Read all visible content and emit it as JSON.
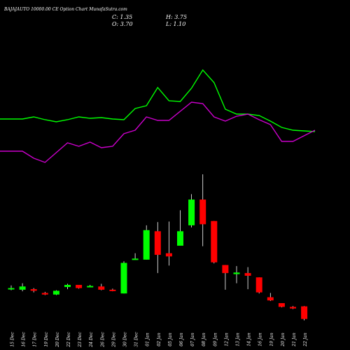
{
  "header": {
    "title": "BAJAJAUTO 10000.00 CE Option  Chart MunafaSutra.com",
    "open_label": "O: 3.70",
    "high_label": "H: 3.75",
    "low_label": "L: 1.10",
    "close_label": "C: 1.35"
  },
  "colors": {
    "background": "#000000",
    "up": "#00ff00",
    "down": "#ff0000",
    "line_1": "#00ff00",
    "line_2": "#cc00cc",
    "text": "#ffffff"
  },
  "chart_data": {
    "type": "candlestick",
    "categories": [
      "15 Dec",
      "16 Dec",
      "17 Dec",
      "19 Dec",
      "20 Dec",
      "22 Dec",
      "23 Dec",
      "24 Dec",
      "26 Dec",
      "29 Dec",
      "30 Dec",
      "31 Dec",
      "01 Jan",
      "02 Jan",
      "05 Jan",
      "06 Jan",
      "07 Jan",
      "08 Jan",
      "09 Jan",
      "12 Jan",
      "13 Jan",
      "14 Jan",
      "16 Jan",
      "19 Jan",
      "20 Jan",
      "21 Jan",
      "22 Jan"
    ],
    "candles": [
      {
        "o": 7.0,
        "h": 7.6,
        "l": 6.7,
        "c": 7.1
      },
      {
        "o": 6.8,
        "h": 8.0,
        "l": 6.5,
        "c": 7.4
      },
      {
        "o": 6.9,
        "h": 7.1,
        "l": 6.3,
        "c": 6.6
      },
      {
        "o": 6.2,
        "h": 6.4,
        "l": 5.8,
        "c": 5.9
      },
      {
        "o": 5.9,
        "h": 6.7,
        "l": 5.8,
        "c": 6.6
      },
      {
        "o": 7.3,
        "h": 7.9,
        "l": 6.9,
        "c": 7.7
      },
      {
        "o": 7.7,
        "h": 7.7,
        "l": 7.0,
        "c": 7.1
      },
      {
        "o": 7.4,
        "h": 7.7,
        "l": 7.3,
        "c": 7.5
      },
      {
        "o": 7.4,
        "h": 7.9,
        "l": 6.7,
        "c": 6.8
      },
      {
        "o": 6.8,
        "h": 7.0,
        "l": 6.5,
        "c": 6.7
      },
      {
        "o": 6.1,
        "h": 12.1,
        "l": 6.1,
        "c": 11.8
      },
      {
        "o": 12.4,
        "h": 13.6,
        "l": 12.4,
        "c": 12.6
      },
      {
        "o": 12.4,
        "h": 18.8,
        "l": 12.4,
        "c": 17.9
      },
      {
        "o": 17.7,
        "h": 19.4,
        "l": 9.9,
        "c": 13.3
      },
      {
        "o": 13.6,
        "h": 19.5,
        "l": 11.3,
        "c": 13.0
      },
      {
        "o": 15.0,
        "h": 21.6,
        "l": 15.0,
        "c": 17.7
      },
      {
        "o": 18.8,
        "h": 24.6,
        "l": 18.4,
        "c": 23.6
      },
      {
        "o": 23.6,
        "h": 28.3,
        "l": 14.9,
        "c": 19.0
      },
      {
        "o": 19.6,
        "h": 19.6,
        "l": 11.7,
        "c": 11.9
      },
      {
        "o": 11.4,
        "h": 11.4,
        "l": 6.8,
        "c": 9.9
      },
      {
        "o": 9.7,
        "h": 11.2,
        "l": 8.0,
        "c": 10.0
      },
      {
        "o": 9.9,
        "h": 11.0,
        "l": 6.9,
        "c": 9.4
      },
      {
        "o": 9.1,
        "h": 9.1,
        "l": 6.1,
        "c": 6.3
      },
      {
        "o": 5.4,
        "h": 6.2,
        "l": 4.7,
        "c": 4.8
      },
      {
        "o": 4.3,
        "h": 4.3,
        "l": 3.5,
        "c": 3.6
      },
      {
        "o": 3.6,
        "h": 3.75,
        "l": 3.2,
        "c": 3.3
      },
      {
        "o": 3.7,
        "h": 3.75,
        "l": 1.1,
        "c": 1.35
      }
    ],
    "lines": [
      {
        "values": [
          170,
          170,
          167,
          171,
          174,
          171,
          167,
          169,
          168,
          170,
          171,
          155,
          151,
          125,
          144,
          145,
          126,
          100,
          118,
          156,
          163,
          163,
          165,
          173,
          182,
          186,
          188
        ]
      },
      {
        "values": [
          216,
          216,
          226,
          232,
          218,
          204,
          209,
          203,
          211,
          209,
          191,
          186,
          167,
          172,
          172,
          159,
          146,
          148,
          167,
          173,
          166,
          163,
          171,
          178,
          202,
          202,
          186
        ]
      }
    ],
    "price_range": [
      0,
      30
    ]
  }
}
